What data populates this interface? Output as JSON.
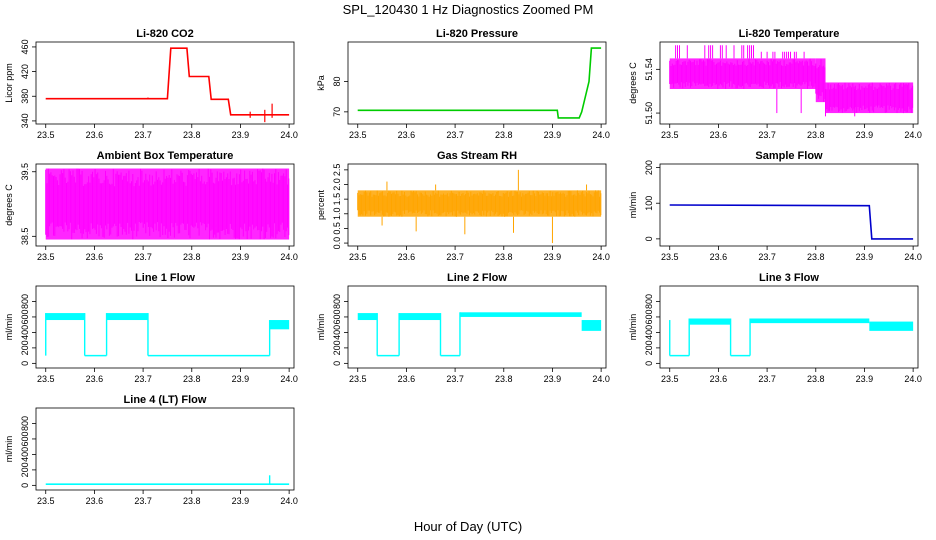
{
  "figure": {
    "title": "SPL_120430  1 Hz Diagnostics Zoomed PM",
    "xlabel": "Hour of Day (UTC)"
  },
  "chart_data": [
    {
      "id": "co2",
      "type": "line",
      "title": "Li-820 CO2",
      "ylabel": "Licor ppm",
      "color": "#ff0000",
      "style": "step",
      "xlim": [
        23.48,
        24.01
      ],
      "ylim": [
        335,
        468
      ],
      "xticks": [
        23.5,
        23.6,
        23.7,
        23.8,
        23.9,
        24.0
      ],
      "xtick_labels": [
        "23.5",
        "23.6",
        "23.7",
        "23.8",
        "23.9",
        "24.0"
      ],
      "yticks": [
        340,
        380,
        420,
        460
      ],
      "ytick_labels": [
        "340",
        "380",
        "420",
        "460"
      ],
      "x": [
        23.5,
        23.75,
        23.757,
        23.79,
        23.795,
        23.835,
        23.84,
        23.875,
        23.88,
        24.0
      ],
      "y": [
        376,
        376,
        458,
        458,
        412,
        412,
        375,
        375,
        350,
        350
      ],
      "spikes": [
        [
          23.71,
          376,
          378
        ],
        [
          23.92,
          345,
          355
        ],
        [
          23.95,
          338,
          358
        ],
        [
          23.965,
          345,
          368
        ]
      ]
    },
    {
      "id": "pressure",
      "type": "line",
      "title": "Li-820 Pressure",
      "ylabel": "kPa",
      "color": "#00cc00",
      "style": "step",
      "xlim": [
        23.48,
        24.01
      ],
      "ylim": [
        66,
        93
      ],
      "xticks": [
        23.5,
        23.6,
        23.7,
        23.8,
        23.9,
        24.0
      ],
      "xtick_labels": [
        "23.5",
        "23.6",
        "23.7",
        "23.8",
        "23.9",
        "24.0"
      ],
      "yticks": [
        70,
        80
      ],
      "ytick_labels": [
        "70",
        "80"
      ],
      "x": [
        23.5,
        23.91,
        23.912,
        23.955,
        23.96,
        23.975,
        23.98,
        24.0
      ],
      "y": [
        70.5,
        70.5,
        68,
        68,
        70,
        80,
        91,
        91
      ]
    },
    {
      "id": "licor_temp",
      "type": "band",
      "title": "Li-820 Temperature",
      "ylabel": "degrees C",
      "color": "#ff00ff",
      "xlim": [
        23.48,
        24.01
      ],
      "ylim": [
        51.49,
        51.565
      ],
      "xticks": [
        23.5,
        23.6,
        23.7,
        23.8,
        23.9,
        24.0
      ],
      "xtick_labels": [
        "23.5",
        "23.6",
        "23.7",
        "23.8",
        "23.9",
        "24.0"
      ],
      "yticks": [
        51.5,
        51.54
      ],
      "ytick_labels": [
        "51.50",
        "51.54"
      ],
      "bands": [
        [
          23.5,
          23.8,
          51.522,
          51.55
        ],
        [
          23.8,
          23.82,
          51.51,
          51.55
        ],
        [
          23.82,
          24.0,
          51.5,
          51.528
        ]
      ],
      "top_spikes": [
        [
          23.5,
          23.68,
          51.562
        ],
        [
          23.68,
          23.78,
          51.556
        ]
      ],
      "low_spikes": [
        [
          23.72,
          51.5
        ],
        [
          23.77,
          51.5
        ],
        [
          23.82,
          51.497
        ],
        [
          23.88,
          51.497
        ],
        [
          23.98,
          51.5
        ]
      ]
    },
    {
      "id": "box_temp",
      "type": "band",
      "title": "Ambient Box Temperature",
      "ylabel": "degrees C",
      "color": "#ff00ff",
      "xlim": [
        23.48,
        24.01
      ],
      "ylim": [
        38.35,
        39.62
      ],
      "xticks": [
        23.5,
        23.6,
        23.7,
        23.8,
        23.9,
        24.0
      ],
      "xtick_labels": [
        "23.5",
        "23.6",
        "23.7",
        "23.8",
        "23.9",
        "24.0"
      ],
      "yticks": [
        38.5,
        39.5
      ],
      "ytick_labels": [
        "38.5",
        "39.5"
      ],
      "bands": [
        [
          23.5,
          24.0,
          38.45,
          39.55
        ]
      ]
    },
    {
      "id": "rh",
      "type": "band",
      "title": "Gas Stream RH",
      "ylabel": "percent",
      "color": "#ffa500",
      "xlim": [
        23.48,
        24.01
      ],
      "ylim": [
        -0.1,
        2.7
      ],
      "xticks": [
        23.5,
        23.6,
        23.7,
        23.8,
        23.9,
        24.0
      ],
      "xtick_labels": [
        "23.5",
        "23.6",
        "23.7",
        "23.8",
        "23.9",
        "24.0"
      ],
      "yticks": [
        0.0,
        0.5,
        1.0,
        1.5,
        2.0,
        2.5
      ],
      "ytick_labels": [
        "0.0",
        "0.5",
        "1.0",
        "1.5",
        "2.0",
        "2.5"
      ],
      "bands": [
        [
          23.5,
          24.0,
          0.9,
          1.8
        ]
      ],
      "low_spikes": [
        [
          23.55,
          0.6
        ],
        [
          23.62,
          0.4
        ],
        [
          23.72,
          0.3
        ],
        [
          23.82,
          0.35
        ],
        [
          23.9,
          0.0
        ]
      ],
      "high_spikes": [
        [
          23.56,
          2.1
        ],
        [
          23.66,
          2.0
        ],
        [
          23.83,
          2.5
        ],
        [
          23.97,
          2.0
        ]
      ]
    },
    {
      "id": "sample_flow",
      "type": "line",
      "title": "Sample Flow",
      "ylabel": "ml/min",
      "color": "#0000cc",
      "style": "step",
      "xlim": [
        23.48,
        24.01
      ],
      "ylim": [
        -20,
        210
      ],
      "xticks": [
        23.5,
        23.6,
        23.7,
        23.8,
        23.9,
        24.0
      ],
      "xtick_labels": [
        "23.5",
        "23.6",
        "23.7",
        "23.8",
        "23.9",
        "24.0"
      ],
      "yticks": [
        0,
        100,
        200
      ],
      "ytick_labels": [
        "0",
        "100",
        "200"
      ],
      "x": [
        23.5,
        23.91,
        23.915,
        24.0
      ],
      "y": [
        95,
        93,
        0,
        0
      ]
    },
    {
      "id": "line1",
      "type": "flowline",
      "title": "Line 1 Flow",
      "ylabel": "ml/min",
      "color": "#00ffff",
      "xlim": [
        23.48,
        24.01
      ],
      "ylim": [
        -60,
        1000
      ],
      "xticks": [
        23.5,
        23.6,
        23.7,
        23.8,
        23.9,
        24.0
      ],
      "xtick_labels": [
        "23.5",
        "23.6",
        "23.7",
        "23.8",
        "23.9",
        "24.0"
      ],
      "yticks": [
        0,
        200,
        400,
        600,
        800
      ],
      "ytick_labels": [
        "0",
        "200",
        "400",
        "600",
        "800"
      ],
      "high": [
        [
          23.5,
          23.58,
          560,
          650
        ],
        [
          23.625,
          23.71,
          560,
          650
        ],
        [
          23.96,
          24.0,
          440,
          560
        ]
      ],
      "low": [
        [
          23.58,
          23.625,
          100
        ],
        [
          23.71,
          23.96,
          100
        ]
      ],
      "spikes": [
        [
          23.5,
          100,
          650
        ]
      ]
    },
    {
      "id": "line2",
      "type": "flowline",
      "title": "Line 2 Flow",
      "ylabel": "ml/min",
      "color": "#00ffff",
      "xlim": [
        23.48,
        24.01
      ],
      "ylim": [
        -60,
        1000
      ],
      "xticks": [
        23.5,
        23.6,
        23.7,
        23.8,
        23.9,
        24.0
      ],
      "xtick_labels": [
        "23.5",
        "23.6",
        "23.7",
        "23.8",
        "23.9",
        "24.0"
      ],
      "yticks": [
        0,
        200,
        400,
        600,
        800
      ],
      "ytick_labels": [
        "0",
        "200",
        "400",
        "600",
        "800"
      ],
      "high": [
        [
          23.5,
          23.54,
          560,
          650
        ],
        [
          23.585,
          23.67,
          560,
          650
        ],
        [
          23.71,
          23.96,
          600,
          660
        ],
        [
          23.96,
          24.0,
          420,
          560
        ]
      ],
      "low": [
        [
          23.54,
          23.585,
          100
        ],
        [
          23.67,
          23.71,
          100
        ]
      ],
      "spikes": []
    },
    {
      "id": "line3",
      "type": "flowline",
      "title": "Line 3 Flow",
      "ylabel": "ml/min",
      "color": "#00ffff",
      "xlim": [
        23.48,
        24.01
      ],
      "ylim": [
        -60,
        1000
      ],
      "xticks": [
        23.5,
        23.6,
        23.7,
        23.8,
        23.9,
        24.0
      ],
      "xtick_labels": [
        "23.5",
        "23.6",
        "23.7",
        "23.8",
        "23.9",
        "24.0"
      ],
      "yticks": [
        0,
        200,
        400,
        600,
        800
      ],
      "ytick_labels": [
        "0",
        "200",
        "400",
        "600",
        "800"
      ],
      "high": [
        [
          23.54,
          23.625,
          500,
          580
        ],
        [
          23.665,
          23.91,
          520,
          580
        ],
        [
          23.91,
          24.0,
          420,
          540
        ]
      ],
      "low": [
        [
          23.5,
          23.54,
          100
        ],
        [
          23.625,
          23.665,
          100
        ]
      ],
      "spikes": [
        [
          23.5,
          100,
          560
        ]
      ]
    },
    {
      "id": "line4",
      "type": "flowline",
      "title": "Line 4 (LT) Flow",
      "ylabel": "ml/min",
      "color": "#00ffff",
      "xlim": [
        23.48,
        24.01
      ],
      "ylim": [
        -60,
        1000
      ],
      "xticks": [
        23.5,
        23.6,
        23.7,
        23.8,
        23.9,
        24.0
      ],
      "xtick_labels": [
        "23.5",
        "23.6",
        "23.7",
        "23.8",
        "23.9",
        "24.0"
      ],
      "yticks": [
        0,
        200,
        400,
        600,
        800
      ],
      "ytick_labels": [
        "0",
        "200",
        "400",
        "600",
        "800"
      ],
      "high": [],
      "low": [
        [
          23.5,
          24.0,
          15
        ]
      ],
      "spikes": [
        [
          23.96,
          15,
          130
        ]
      ]
    }
  ]
}
